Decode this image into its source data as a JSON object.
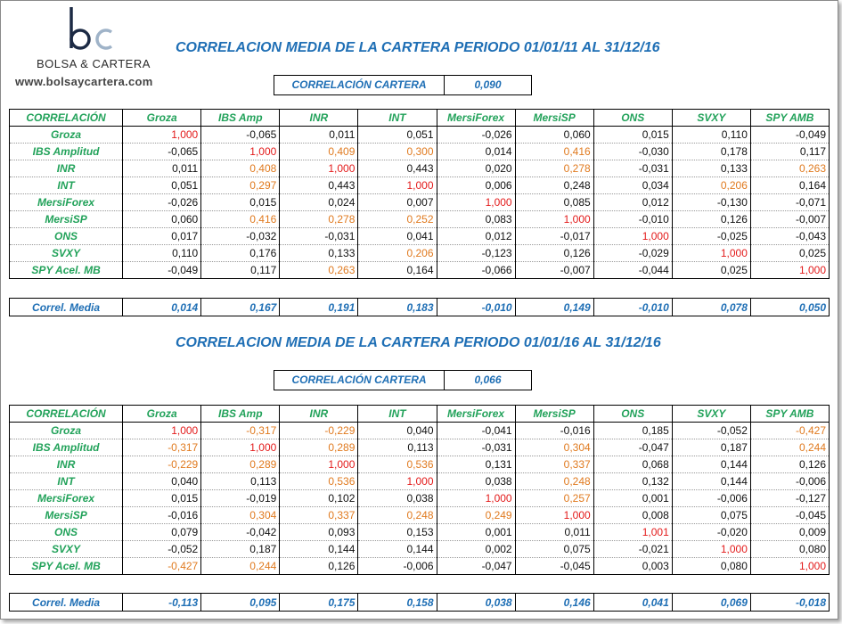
{
  "brand": {
    "name": "BOLSA & CARTERA",
    "website": "www.bolsaycartera.com",
    "colors": {
      "b": "#1c2a44",
      "c": "#9fb3c8"
    }
  },
  "colors": {
    "title": "#1f6fb5",
    "label": "#22a25a",
    "diagonal": "#e31b1b",
    "highlight": "#e07a1f"
  },
  "sections": [
    {
      "title": "CORRELACION MEDIA DE LA CARTERA PERIODO 01/01/11 AL 31/12/16",
      "portfolio_label": "CORRELACIÓN CARTERA",
      "portfolio_value": "0,090",
      "header": [
        "CORRELACIÓN",
        "Groza",
        "IBS Amp",
        "INR",
        "INT",
        "MersiForex",
        "MersiSP",
        "ONS",
        "SVXY",
        "SPY AMB"
      ],
      "rows": [
        {
          "label": "Groza",
          "values": [
            "1,000",
            "-0,065",
            "0,011",
            "0,051",
            "-0,026",
            "0,060",
            "0,015",
            "0,110",
            "-0,049"
          ],
          "colors": [
            "red",
            "black",
            "black",
            "black",
            "black",
            "black",
            "black",
            "black",
            "black"
          ]
        },
        {
          "label": "IBS Amplitud",
          "values": [
            "-0,065",
            "1,000",
            "0,409",
            "0,300",
            "0,014",
            "0,416",
            "-0,030",
            "0,178",
            "0,117"
          ],
          "colors": [
            "black",
            "red",
            "orange",
            "orange",
            "black",
            "orange",
            "black",
            "black",
            "black"
          ]
        },
        {
          "label": "INR",
          "values": [
            "0,011",
            "0,408",
            "1,000",
            "0,443",
            "0,020",
            "0,278",
            "-0,031",
            "0,133",
            "0,263"
          ],
          "colors": [
            "black",
            "orange",
            "red",
            "black",
            "black",
            "orange",
            "black",
            "black",
            "orange"
          ]
        },
        {
          "label": "INT",
          "values": [
            "0,051",
            "0,297",
            "0,443",
            "1,000",
            "0,006",
            "0,248",
            "0,034",
            "0,206",
            "0,164"
          ],
          "colors": [
            "black",
            "orange",
            "black",
            "red",
            "black",
            "black",
            "black",
            "orange",
            "black"
          ]
        },
        {
          "label": "MersiForex",
          "values": [
            "-0,026",
            "0,015",
            "0,024",
            "0,007",
            "1,000",
            "0,085",
            "0,012",
            "-0,130",
            "-0,071"
          ],
          "colors": [
            "black",
            "black",
            "black",
            "black",
            "red",
            "black",
            "black",
            "black",
            "black"
          ]
        },
        {
          "label": "MersiSP",
          "values": [
            "0,060",
            "0,416",
            "0,278",
            "0,252",
            "0,083",
            "1,000",
            "-0,010",
            "0,126",
            "-0,007"
          ],
          "colors": [
            "black",
            "orange",
            "orange",
            "orange",
            "black",
            "red",
            "black",
            "black",
            "black"
          ]
        },
        {
          "label": "ONS",
          "values": [
            "0,017",
            "-0,032",
            "-0,031",
            "0,041",
            "0,012",
            "-0,017",
            "1,000",
            "-0,025",
            "-0,043"
          ],
          "colors": [
            "black",
            "black",
            "black",
            "black",
            "black",
            "black",
            "red",
            "black",
            "black"
          ]
        },
        {
          "label": "SVXY",
          "values": [
            "0,110",
            "0,176",
            "0,133",
            "0,206",
            "-0,123",
            "0,126",
            "-0,029",
            "1,000",
            "0,025"
          ],
          "colors": [
            "black",
            "black",
            "black",
            "orange",
            "black",
            "black",
            "black",
            "red",
            "black"
          ]
        },
        {
          "label": "SPY Acel. MB",
          "values": [
            "-0,049",
            "0,117",
            "0,263",
            "0,164",
            "-0,066",
            "-0,007",
            "-0,044",
            "0,025",
            "1,000"
          ],
          "colors": [
            "black",
            "black",
            "orange",
            "black",
            "black",
            "black",
            "black",
            "black",
            "red"
          ]
        }
      ],
      "media_label": "Correl. Media",
      "media_values": [
        "0,014",
        "0,167",
        "0,191",
        "0,183",
        "-0,010",
        "0,149",
        "-0,010",
        "0,078",
        "0,050"
      ]
    },
    {
      "title": "CORRELACION MEDIA DE LA CARTERA PERIODO 01/01/16 AL 31/12/16",
      "portfolio_label": "CORRELACIÓN CARTERA",
      "portfolio_value": "0,066",
      "header": [
        "CORRELACIÓN",
        "Groza",
        "IBS Amp",
        "INR",
        "INT",
        "MersiForex",
        "MersiSP",
        "ONS",
        "SVXY",
        "SPY AMB"
      ],
      "rows": [
        {
          "label": "Groza",
          "values": [
            "1,000",
            "-0,317",
            "-0,229",
            "0,040",
            "-0,041",
            "-0,016",
            "0,185",
            "-0,052",
            "-0,427"
          ],
          "colors": [
            "red",
            "orange",
            "orange",
            "black",
            "black",
            "black",
            "black",
            "black",
            "orange"
          ]
        },
        {
          "label": "IBS Amplitud",
          "values": [
            "-0,317",
            "1,000",
            "0,289",
            "0,113",
            "-0,031",
            "0,304",
            "-0,047",
            "0,187",
            "0,244"
          ],
          "colors": [
            "orange",
            "red",
            "orange",
            "black",
            "black",
            "orange",
            "black",
            "black",
            "orange"
          ]
        },
        {
          "label": "INR",
          "values": [
            "-0,229",
            "0,289",
            "1,000",
            "0,536",
            "0,131",
            "0,337",
            "0,068",
            "0,144",
            "0,126"
          ],
          "colors": [
            "orange",
            "orange",
            "red",
            "orange",
            "black",
            "orange",
            "black",
            "black",
            "black"
          ]
        },
        {
          "label": "INT",
          "values": [
            "0,040",
            "0,113",
            "0,536",
            "1,000",
            "0,038",
            "0,248",
            "0,132",
            "0,144",
            "-0,006"
          ],
          "colors": [
            "black",
            "black",
            "orange",
            "red",
            "black",
            "orange",
            "black",
            "black",
            "black"
          ]
        },
        {
          "label": "MersiForex",
          "values": [
            "0,015",
            "-0,019",
            "0,102",
            "0,038",
            "1,000",
            "0,257",
            "0,001",
            "-0,006",
            "-0,127"
          ],
          "colors": [
            "black",
            "black",
            "black",
            "black",
            "red",
            "orange",
            "black",
            "black",
            "black"
          ]
        },
        {
          "label": "MersiSP",
          "values": [
            "-0,016",
            "0,304",
            "0,337",
            "0,248",
            "0,249",
            "1,000",
            "0,008",
            "0,075",
            "-0,045"
          ],
          "colors": [
            "black",
            "orange",
            "orange",
            "orange",
            "orange",
            "red",
            "black",
            "black",
            "black"
          ]
        },
        {
          "label": "ONS",
          "values": [
            "0,079",
            "-0,042",
            "0,093",
            "0,153",
            "0,001",
            "0,011",
            "1,001",
            "-0,020",
            "0,009"
          ],
          "colors": [
            "black",
            "black",
            "black",
            "black",
            "black",
            "black",
            "red",
            "black",
            "black"
          ]
        },
        {
          "label": "SVXY",
          "values": [
            "-0,052",
            "0,187",
            "0,144",
            "0,144",
            "0,002",
            "0,075",
            "-0,021",
            "1,000",
            "0,080"
          ],
          "colors": [
            "black",
            "black",
            "black",
            "black",
            "black",
            "black",
            "black",
            "red",
            "black"
          ]
        },
        {
          "label": "SPY Acel. MB",
          "values": [
            "-0,427",
            "0,244",
            "0,126",
            "-0,006",
            "-0,047",
            "-0,045",
            "0,003",
            "0,080",
            "1,000"
          ],
          "colors": [
            "orange",
            "orange",
            "black",
            "black",
            "black",
            "black",
            "black",
            "black",
            "red"
          ]
        }
      ],
      "media_label": "Correl. Media",
      "media_values": [
        "-0,113",
        "0,095",
        "0,175",
        "0,158",
        "0,038",
        "0,146",
        "0,041",
        "0,069",
        "-0,018"
      ]
    }
  ]
}
